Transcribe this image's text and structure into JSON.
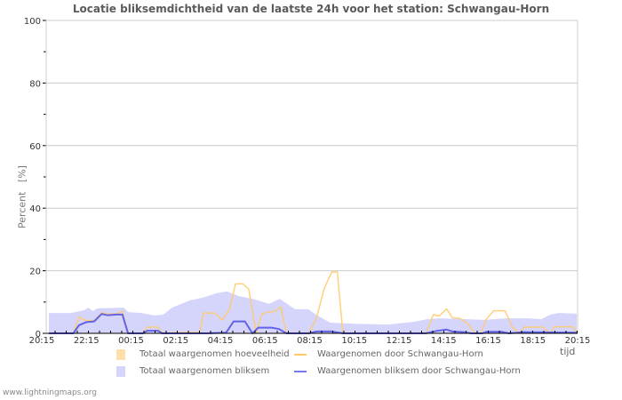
{
  "title": "Locatie bliksemdichtheid van de laatste 24h voor het station: Schwangau-Horn",
  "y_axis_label": "Percent   [%]",
  "x_axis_unit": "tijd",
  "footer": "www.lightningmaps.org",
  "colors": {
    "total_amount_fill": "#ffe0a8",
    "total_lightning_fill": "#d5d5fb",
    "station_line": "#ffc966",
    "station_lightning_line": "#5555e8",
    "grid": "#cccccc",
    "axis_text": "#333333"
  },
  "legend": [
    {
      "label": "Totaal waargenomen hoeveelheid",
      "kind": "area",
      "color": "#ffe0a8"
    },
    {
      "label": "Waargenomen door Schwangau-Horn",
      "kind": "line",
      "color": "#ffc966"
    },
    {
      "label": "Totaal waargenomen bliksem",
      "kind": "area",
      "color": "#d5d5fb"
    },
    {
      "label": "Waargenomen bliksem door Schwangau-Horn",
      "kind": "line",
      "color": "#7777ee"
    }
  ],
  "chart_data": {
    "type": "area",
    "title": "Locatie bliksemdichtheid van de laatste 24h voor het station: Schwangau-Horn",
    "xlabel": "tijd",
    "ylabel": "Percent [%]",
    "ylim": [
      0,
      100
    ],
    "yticks": [
      0,
      20,
      40,
      60,
      80,
      100
    ],
    "xticks": [
      "20:15",
      "22:15",
      "00:15",
      "02:15",
      "04:15",
      "06:15",
      "08:15",
      "10:15",
      "12:15",
      "14:15",
      "16:15",
      "18:15",
      "20:15"
    ],
    "x_unit": "hours since 20:15",
    "grid": true,
    "legend_position": "bottom",
    "series": [
      {
        "name": "Totaal waargenomen bliksem",
        "kind": "area",
        "points": [
          [
            0,
            6.5
          ],
          [
            1,
            6.5
          ],
          [
            1.6,
            7.4
          ],
          [
            1.8,
            8.2
          ],
          [
            2,
            7.1
          ],
          [
            2.2,
            8
          ],
          [
            3.4,
            8.2
          ],
          [
            3.6,
            6.8
          ],
          [
            4.2,
            6.5
          ],
          [
            4.8,
            5.7
          ],
          [
            5.2,
            6
          ],
          [
            5.6,
            8.2
          ],
          [
            6.4,
            10.5
          ],
          [
            7,
            11.4
          ],
          [
            7.6,
            12.8
          ],
          [
            8.1,
            13.4
          ],
          [
            8.6,
            12
          ],
          [
            9.4,
            10.8
          ],
          [
            10,
            9.4
          ],
          [
            10.5,
            11
          ],
          [
            11.2,
            7.7
          ],
          [
            11.8,
            7.7
          ],
          [
            12.2,
            5.7
          ],
          [
            12.8,
            3.4
          ],
          [
            13.8,
            3.1
          ],
          [
            15.4,
            2.8
          ],
          [
            16.6,
            3.7
          ],
          [
            17.2,
            4.5
          ],
          [
            17.8,
            4.8
          ],
          [
            19,
            4.5
          ],
          [
            19.8,
            4.3
          ],
          [
            20.8,
            4.8
          ],
          [
            21.8,
            4.8
          ],
          [
            22.4,
            4.5
          ],
          [
            22.8,
            6
          ],
          [
            23.2,
            6.5
          ],
          [
            24,
            6.3
          ]
        ]
      },
      {
        "name": "Totaal waargenomen hoeveelheid",
        "kind": "area",
        "points": [
          [
            0,
            0
          ],
          [
            24,
            0
          ]
        ]
      },
      {
        "name": "Waargenomen door Schwangau-Horn",
        "kind": "line",
        "points": [
          [
            0,
            0
          ],
          [
            1,
            0
          ],
          [
            1.3,
            0
          ],
          [
            1.6,
            5.2
          ],
          [
            1.9,
            4.2
          ],
          [
            2.4,
            4
          ],
          [
            2.8,
            6.6
          ],
          [
            3.1,
            6.2
          ],
          [
            3.6,
            6.2
          ],
          [
            3.9,
            7.1
          ],
          [
            4.2,
            0
          ],
          [
            4.8,
            0
          ],
          [
            5.0,
            0
          ],
          [
            5.2,
            2
          ],
          [
            5.8,
            2
          ],
          [
            6.0,
            0
          ],
          [
            7,
            0.3
          ],
          [
            8.0,
            0.3
          ],
          [
            8.2,
            6.5
          ],
          [
            8.8,
            6.5
          ],
          [
            9.2,
            4.2
          ],
          [
            9.6,
            8
          ],
          [
            9.9,
            15.8
          ],
          [
            10.3,
            15.8
          ],
          [
            10.6,
            14.2
          ],
          [
            11.0,
            0
          ],
          [
            11.3,
            6.2
          ],
          [
            11.6,
            6.8
          ],
          [
            12.0,
            7
          ],
          [
            12.3,
            8.5
          ],
          [
            12.6,
            0
          ],
          [
            13.8,
            0
          ],
          [
            14.2,
            5
          ],
          [
            14.6,
            14.2
          ],
          [
            15.0,
            19.6
          ],
          [
            15.3,
            19.6
          ],
          [
            15.6,
            0
          ],
          [
            16.4,
            0
          ],
          [
            18,
            0
          ],
          [
            20.0,
            0
          ],
          [
            20.4,
            6
          ],
          [
            20.7,
            5.5
          ],
          [
            21.1,
            7.8
          ],
          [
            21.4,
            5
          ],
          [
            21.8,
            4.8
          ],
          [
            22.2,
            3.2
          ],
          [
            22.6,
            0
          ],
          [
            22.9,
            0
          ],
          [
            23.2,
            4.5
          ],
          [
            23.6,
            7.2
          ],
          [
            24.2,
            7.2
          ],
          [
            24.6,
            1.8
          ],
          [
            25.0,
            0
          ],
          [
            25.2,
            2
          ],
          [
            26.2,
            2
          ],
          [
            26.6,
            0
          ],
          [
            26.8,
            2.1
          ],
          [
            27.8,
            2.1
          ],
          [
            28.0,
            0
          ]
        ]
      },
      {
        "name": "Waargenomen bliksem door Schwangau-Horn",
        "kind": "line",
        "points": [
          [
            0,
            0
          ],
          [
            1.3,
            0
          ],
          [
            1.6,
            2.6
          ],
          [
            2.0,
            3.6
          ],
          [
            2.4,
            3.8
          ],
          [
            2.8,
            6.2
          ],
          [
            3.1,
            5.8
          ],
          [
            3.6,
            6
          ],
          [
            3.9,
            6
          ],
          [
            4.2,
            0
          ],
          [
            5.0,
            0
          ],
          [
            5.2,
            0.8
          ],
          [
            5.8,
            0.8
          ],
          [
            6.0,
            0
          ],
          [
            8.4,
            0
          ],
          [
            9.4,
            0.2
          ],
          [
            9.8,
            3.8
          ],
          [
            10.4,
            3.8
          ],
          [
            10.8,
            0
          ],
          [
            11.1,
            1.8
          ],
          [
            11.8,
            1.8
          ],
          [
            12.2,
            1.4
          ],
          [
            12.6,
            0
          ],
          [
            13.8,
            0
          ],
          [
            14.2,
            0.6
          ],
          [
            15.0,
            0.6
          ],
          [
            15.6,
            0
          ],
          [
            20.0,
            0
          ],
          [
            20.6,
            0.8
          ],
          [
            21.1,
            1.2
          ],
          [
            21.4,
            0.6
          ],
          [
            22.0,
            0.4
          ],
          [
            22.4,
            0
          ],
          [
            23.0,
            0
          ],
          [
            23.2,
            0.5
          ],
          [
            24.0,
            0.5
          ],
          [
            24.4,
            0
          ],
          [
            25.2,
            0.4
          ],
          [
            28.0,
            0.2
          ]
        ]
      }
    ]
  }
}
